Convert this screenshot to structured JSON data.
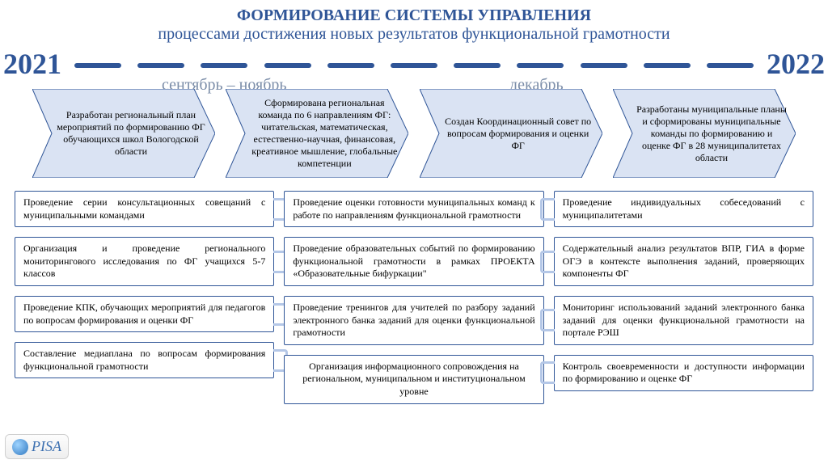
{
  "title": {
    "line1": "ФОРМИРОВАНИЕ СИСТЕМЫ УПРАВЛЕНИЯ",
    "line2": "процессами достижения новых результатов функциональной грамотности"
  },
  "timeline": {
    "year_start": "2021",
    "year_end": "2022",
    "period1": "сентябрь – ноябрь",
    "period2": "декабрь",
    "dash_count": 11,
    "dash_color": "#2f5597"
  },
  "chevrons": {
    "fill": "#dae3f3",
    "stroke": "#2f5597",
    "items": [
      {
        "text": "Разработан региональный план мероприятий по формированию ФГ обучающихся школ Вологодской области"
      },
      {
        "text": "Сформирована региональная команда по 6 направлениям ФГ: читательская, математическая, естественно-научная, финансовая, креативное мышление, глобальные компетенции"
      },
      {
        "text": "Создан Координационный совет по вопросам формирования и оценки ФГ"
      },
      {
        "text": "Разработаны муниципальные планы и сформированы муниципальные команды по формированию и оценке ФГ в 28 муниципалитетах области"
      }
    ]
  },
  "columns": {
    "border_color": "#2f5597",
    "connector_color": "#b4c7e7",
    "left": [
      "Проведение серии консультационных совещаний с муниципальными командами",
      "Организация и проведение регионального мониторингового исследования по ФГ учащихся 5-7 классов",
      "Проведение КПК, обучающих мероприятий для педагогов по вопросам формирования и оценки ФГ",
      "Составление медиаплана по вопросам формирования функциональной грамотности"
    ],
    "middle": [
      "Проведение оценки готовности муниципальных команд к работе по направлениям функциональной грамотности",
      "Проведение образовательных событий по формированию функциональной грамотности в рамках ПРОЕКТА «Образовательные бифуркации\"",
      "Проведение тренингов для учителей по разбору заданий электронного банка заданий для оценки функциональной грамотности",
      "Организация информационного сопровождения на региональном, муниципальном и институциональном уровне"
    ],
    "right": [
      "Проведение индивидуальных собеседований с муниципалитетами",
      "Содержательный анализ результатов ВПР, ГИА в форме ОГЭ в контексте выполнения заданий, проверяющих компоненты ФГ",
      "Мониторинг использований заданий электронного банка заданий для оценки функциональной грамотности на портале РЭШ",
      "Контроль своевременности и доступности информации по формированию и оценке ФГ"
    ]
  },
  "logo": {
    "text": "PISA"
  },
  "colors": {
    "brand": "#2f5597",
    "subheading": "#7b8da8",
    "chevron_fill": "#dae3f3",
    "connector": "#b4c7e7",
    "background": "#ffffff"
  }
}
